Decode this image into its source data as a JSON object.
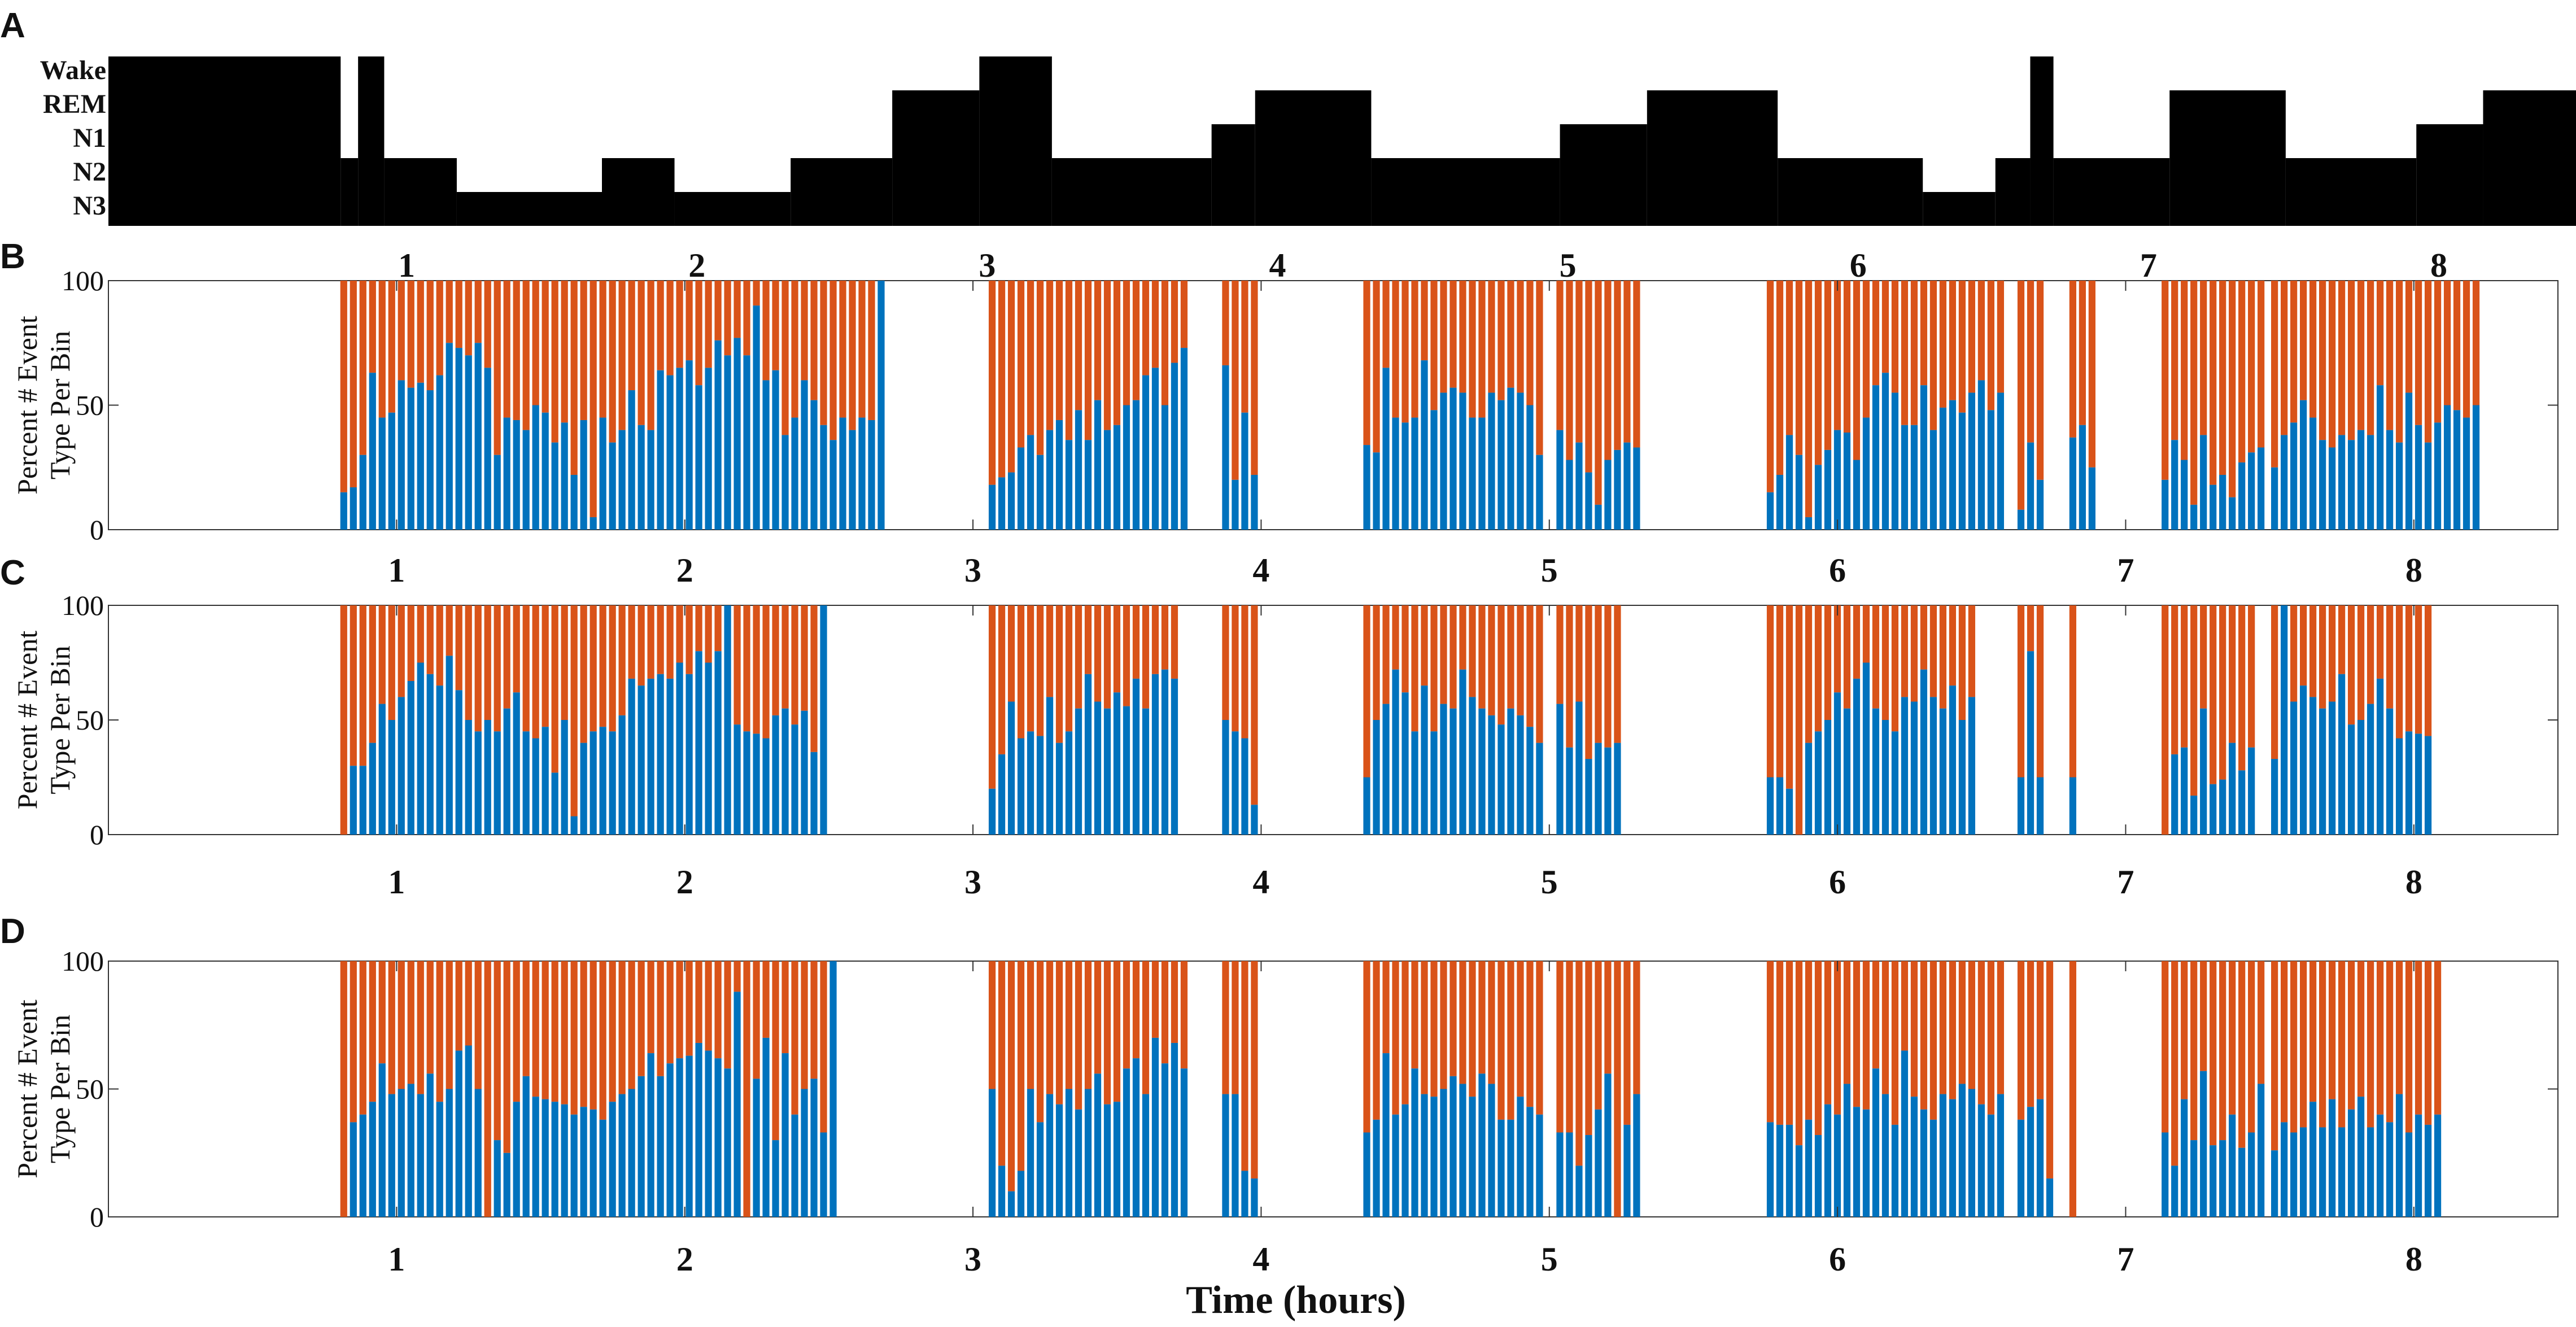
{
  "colors": {
    "event_a": "#0072BD",
    "event_b": "#D95319",
    "hypnogram": "#000000",
    "axis": "#333333"
  },
  "chart_data": [
    {
      "panel": "A",
      "type": "hypnogram",
      "stages": [
        "Wake",
        "REM",
        "N1",
        "N2",
        "N3"
      ],
      "x_ticks": [
        "1",
        "2",
        "3",
        "4",
        "5",
        "6",
        "7",
        "8"
      ],
      "xlim": [
        0,
        8.5
      ],
      "segments": [
        {
          "start": 0.0,
          "end": 0.8,
          "stage": "Wake"
        },
        {
          "start": 0.8,
          "end": 0.86,
          "stage": "N2"
        },
        {
          "start": 0.86,
          "end": 0.95,
          "stage": "Wake"
        },
        {
          "start": 0.95,
          "end": 1.2,
          "stage": "N2"
        },
        {
          "start": 1.2,
          "end": 1.7,
          "stage": "N3"
        },
        {
          "start": 1.7,
          "end": 1.95,
          "stage": "N2"
        },
        {
          "start": 1.95,
          "end": 2.35,
          "stage": "N3"
        },
        {
          "start": 2.35,
          "end": 2.7,
          "stage": "N2"
        },
        {
          "start": 2.7,
          "end": 3.0,
          "stage": "REM"
        },
        {
          "start": 3.0,
          "end": 3.25,
          "stage": "Wake"
        },
        {
          "start": 3.25,
          "end": 3.8,
          "stage": "N2"
        },
        {
          "start": 3.8,
          "end": 3.95,
          "stage": "N1"
        },
        {
          "start": 3.95,
          "end": 4.35,
          "stage": "REM"
        },
        {
          "start": 4.35,
          "end": 5.0,
          "stage": "N2"
        },
        {
          "start": 5.0,
          "end": 5.3,
          "stage": "N1"
        },
        {
          "start": 5.3,
          "end": 5.75,
          "stage": "REM"
        },
        {
          "start": 5.75,
          "end": 6.25,
          "stage": "N2"
        },
        {
          "start": 6.25,
          "end": 6.5,
          "stage": "N3"
        },
        {
          "start": 6.5,
          "end": 6.62,
          "stage": "N2"
        },
        {
          "start": 6.62,
          "end": 6.7,
          "stage": "Wake"
        },
        {
          "start": 6.7,
          "end": 7.1,
          "stage": "N2"
        },
        {
          "start": 7.1,
          "end": 7.5,
          "stage": "REM"
        },
        {
          "start": 7.5,
          "end": 7.95,
          "stage": "N2"
        },
        {
          "start": 7.95,
          "end": 8.18,
          "stage": "N1"
        },
        {
          "start": 8.18,
          "end": 8.5,
          "stage": "REM"
        }
      ]
    },
    {
      "panel": "B",
      "type": "bar",
      "stacked": true,
      "ylabel": "Percent # Event Type Per Bin",
      "ylim": [
        0,
        100
      ],
      "y_ticks": [
        "0",
        "50",
        "100"
      ],
      "x_ticks": [
        "1",
        "2",
        "3",
        "4",
        "5",
        "6",
        "7",
        "8"
      ],
      "xlim": [
        0,
        8.5
      ],
      "bin_hours": 0.0333,
      "groups": [
        {
          "start": 0.8,
          "values": [
            15,
            17,
            30,
            63,
            45,
            47,
            60,
            57,
            59,
            56,
            62,
            75,
            73,
            70,
            75,
            65,
            30,
            45,
            44,
            40,
            50,
            47,
            35,
            43,
            22,
            44,
            5,
            45,
            35,
            40,
            56,
            42,
            40,
            64,
            62,
            65,
            68,
            58,
            65,
            76,
            70,
            77,
            70,
            90,
            60,
            64,
            38,
            45,
            60,
            52,
            42,
            36,
            45,
            40,
            45,
            44,
            100
          ]
        },
        {
          "start": 3.05,
          "values": [
            18,
            21,
            23,
            33,
            38,
            30,
            40,
            44,
            36,
            48,
            36,
            52,
            40,
            42,
            50,
            52,
            62,
            65,
            50,
            67,
            73
          ]
        },
        {
          "start": 3.86,
          "values": [
            66,
            20,
            47,
            22
          ]
        },
        {
          "start": 4.35,
          "values": [
            34,
            31,
            65,
            45,
            43,
            45,
            68,
            48,
            55,
            57,
            55,
            45,
            45,
            55,
            52,
            57,
            55,
            50,
            30
          ]
        },
        {
          "start": 5.02,
          "values": [
            40,
            28,
            35,
            23,
            10,
            28,
            32,
            35,
            33
          ]
        },
        {
          "start": 5.75,
          "values": [
            15,
            22,
            38,
            30,
            5,
            26,
            32,
            40,
            39,
            28,
            45,
            58,
            63,
            55,
            42,
            42,
            58,
            40,
            49,
            52,
            47,
            55,
            60,
            48,
            55
          ]
        },
        {
          "start": 6.62,
          "values": [
            8,
            35,
            20
          ]
        },
        {
          "start": 6.8,
          "values": [
            37,
            42,
            25
          ]
        },
        {
          "start": 7.12,
          "values": [
            20,
            36,
            28,
            10,
            38,
            18,
            22,
            13,
            27,
            31,
            33
          ]
        },
        {
          "start": 7.5,
          "values": [
            25,
            38,
            43,
            52,
            45,
            36,
            33,
            38,
            36,
            40,
            38,
            58,
            40,
            35,
            55,
            42,
            35,
            43,
            50,
            48,
            45,
            50
          ]
        }
      ]
    },
    {
      "panel": "C",
      "type": "bar",
      "stacked": true,
      "ylabel": "Percent # Event Type Per Bin",
      "ylim": [
        0,
        100
      ],
      "y_ticks": [
        "0",
        "50",
        "100"
      ],
      "x_ticks": [
        "1",
        "2",
        "3",
        "4",
        "5",
        "6",
        "7",
        "8"
      ],
      "xlim": [
        0,
        8.5
      ],
      "bin_hours": 0.0333,
      "groups": [
        {
          "start": 0.8,
          "values": [
            0,
            30,
            30,
            40,
            57,
            50,
            60,
            67,
            75,
            70,
            65,
            78,
            63,
            50,
            45,
            50,
            45,
            55,
            62,
            45,
            42,
            47,
            27,
            50,
            8,
            40,
            45,
            47,
            45,
            52,
            68,
            65,
            68,
            70,
            68,
            75,
            70,
            80,
            75,
            80,
            100,
            48,
            45,
            44,
            42,
            52,
            55,
            48,
            54,
            36,
            100
          ]
        },
        {
          "start": 3.05,
          "values": [
            20,
            35,
            58,
            42,
            45,
            43,
            60,
            40,
            45,
            55,
            70,
            58,
            55,
            62,
            56,
            68,
            55,
            70,
            72,
            68
          ]
        },
        {
          "start": 3.86,
          "values": [
            50,
            45,
            42,
            13
          ]
        },
        {
          "start": 4.35,
          "values": [
            25,
            50,
            57,
            72,
            62,
            45,
            65,
            45,
            57,
            55,
            72,
            60,
            55,
            52,
            48,
            55,
            52,
            47,
            40
          ]
        },
        {
          "start": 5.02,
          "values": [
            57,
            38,
            58,
            33,
            40,
            38,
            40
          ]
        },
        {
          "start": 5.75,
          "values": [
            25,
            25,
            20,
            0,
            40,
            45,
            50,
            62,
            55,
            68,
            75,
            55,
            50,
            45,
            60,
            58,
            72,
            60,
            55,
            65,
            50,
            60
          ]
        },
        {
          "start": 6.62,
          "values": [
            25,
            80,
            25
          ]
        },
        {
          "start": 6.8,
          "values": [
            25
          ]
        },
        {
          "start": 7.12,
          "values": [
            0,
            35,
            38,
            17,
            55,
            22,
            24,
            40,
            28,
            38
          ]
        },
        {
          "start": 7.5,
          "values": [
            33,
            100,
            58,
            65,
            60,
            55,
            58,
            70,
            48,
            50,
            57,
            68,
            55,
            42,
            45,
            44,
            43
          ]
        }
      ]
    },
    {
      "panel": "D",
      "type": "bar",
      "stacked": true,
      "ylabel": "Percent # Event Type Per Bin",
      "ylim": [
        0,
        100
      ],
      "y_ticks": [
        "0",
        "50",
        "100"
      ],
      "x_ticks": [
        "1",
        "2",
        "3",
        "4",
        "5",
        "6",
        "7",
        "8"
      ],
      "xlim": [
        0,
        8.5
      ],
      "xlabel": "Time (hours)",
      "bin_hours": 0.0333,
      "groups": [
        {
          "start": 0.8,
          "values": [
            0,
            37,
            40,
            45,
            60,
            48,
            50,
            52,
            48,
            56,
            45,
            50,
            65,
            67,
            50,
            0,
            30,
            25,
            45,
            55,
            47,
            46,
            45,
            44,
            40,
            43,
            42,
            38,
            45,
            48,
            50,
            55,
            64,
            55,
            60,
            62,
            63,
            68,
            65,
            62,
            58,
            88,
            0,
            54,
            70,
            30,
            64,
            40,
            50,
            54,
            33,
            100
          ]
        },
        {
          "start": 3.05,
          "values": [
            50,
            20,
            10,
            18,
            50,
            37,
            48,
            44,
            50,
            42,
            50,
            56,
            44,
            45,
            58,
            62,
            48,
            70,
            60,
            68,
            58
          ]
        },
        {
          "start": 3.86,
          "values": [
            48,
            48,
            18,
            15
          ]
        },
        {
          "start": 4.35,
          "values": [
            33,
            38,
            64,
            40,
            44,
            58,
            48,
            47,
            50,
            55,
            52,
            47,
            56,
            52,
            38,
            38,
            47,
            43,
            40
          ]
        },
        {
          "start": 5.02,
          "values": [
            33,
            33,
            20,
            32,
            42,
            56,
            0,
            36,
            48
          ]
        },
        {
          "start": 5.75,
          "values": [
            37,
            36,
            36,
            28,
            38,
            32,
            44,
            40,
            52,
            43,
            42,
            58,
            48,
            36,
            65,
            47,
            42,
            38,
            48,
            46,
            52,
            50,
            44,
            40,
            48
          ]
        },
        {
          "start": 6.62,
          "values": [
            38,
            43,
            46,
            15
          ]
        },
        {
          "start": 6.8,
          "values": [
            0
          ]
        },
        {
          "start": 7.12,
          "values": [
            33,
            20,
            46,
            30,
            57,
            28,
            30,
            40,
            27,
            33,
            52
          ]
        },
        {
          "start": 7.5,
          "values": [
            26,
            37,
            33,
            35,
            45,
            35,
            46,
            35,
            42,
            47,
            35,
            40,
            37,
            48,
            33,
            40,
            36,
            40
          ]
        }
      ]
    }
  ]
}
